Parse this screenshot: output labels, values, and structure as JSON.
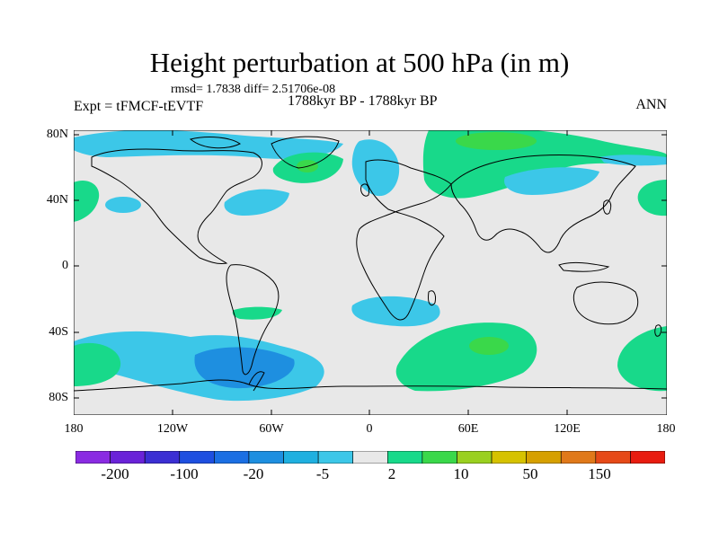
{
  "title": "Height perturbation at 500 hPa (in m)",
  "stats_text": "rmsd= 1.7838 diff= 2.51706e-08",
  "expt_text": "Expt = tFMCF-tEVTF",
  "period_text": "1788kyr BP - 1788kyr BP",
  "season_text": "ANN",
  "lat_ticks": [
    "80N",
    "40N",
    "0",
    "40S",
    "80S"
  ],
  "lon_ticks": [
    "180",
    "120W",
    "60W",
    "0",
    "60E",
    "120E",
    "180"
  ],
  "colorbar": {
    "colors": [
      "#8a2be2",
      "#6a23d8",
      "#3b2fd3",
      "#1e4fe0",
      "#1b6fe3",
      "#1e8fe0",
      "#1fb0e0",
      "#3cc7e8",
      "#e8e8e8",
      "#18d98a",
      "#3ad84a",
      "#9ad020",
      "#d6c200",
      "#d6a000",
      "#e0791a",
      "#e64a18",
      "#e81c10"
    ],
    "labels": [
      "-200",
      "-100",
      "-20",
      "-5",
      "2",
      "10",
      "50",
      "150"
    ]
  },
  "colors": {
    "background": "#e8e8e8",
    "negative_light": "#3cc7e8",
    "negative_mid": "#1e8fe0",
    "positive_light": "#18d98a",
    "positive_mid": "#3ad84a"
  }
}
